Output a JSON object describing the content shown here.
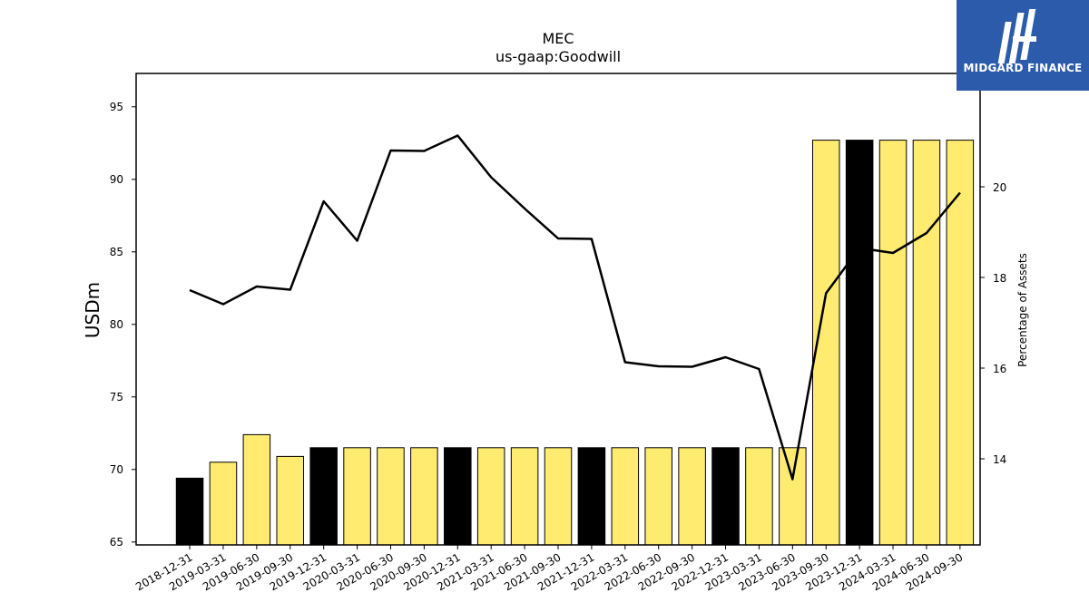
{
  "chart_data": {
    "type": "bar",
    "title": "MEC",
    "subtitle": "us-gaap:Goodwill",
    "ylabel": "USDm",
    "y2label": "Percentage of Assets",
    "ylim": [
      64.8,
      97.3
    ],
    "y2lim": [
      12.1,
      22.5
    ],
    "yticks": [
      65,
      70,
      75,
      80,
      85,
      90,
      95
    ],
    "y2ticks": [
      14,
      16,
      18,
      20
    ],
    "categories": [
      "2018-12-31",
      "2019-03-31",
      "2019-06-30",
      "2019-09-30",
      "2019-12-31",
      "2020-03-31",
      "2020-06-30",
      "2020-09-30",
      "2020-12-31",
      "2021-03-31",
      "2021-06-30",
      "2021-09-30",
      "2021-12-31",
      "2022-03-31",
      "2022-06-30",
      "2022-09-30",
      "2022-12-31",
      "2023-03-31",
      "2023-06-30",
      "2023-09-30",
      "2023-12-31",
      "2024-03-31",
      "2024-06-30",
      "2024-09-30"
    ],
    "bar_values": [
      69.4,
      70.5,
      72.4,
      70.9,
      71.5,
      71.5,
      71.5,
      71.5,
      71.5,
      71.5,
      71.5,
      71.5,
      71.5,
      71.5,
      71.5,
      71.5,
      71.5,
      71.5,
      71.5,
      92.7,
      92.7,
      92.7,
      92.7,
      92.7
    ],
    "bar_colors": [
      "#000000",
      "#ffeb70",
      "#ffeb70",
      "#ffeb70",
      "#000000",
      "#ffeb70",
      "#ffeb70",
      "#ffeb70",
      "#000000",
      "#ffeb70",
      "#ffeb70",
      "#ffeb70",
      "#000000",
      "#ffeb70",
      "#ffeb70",
      "#ffeb70",
      "#000000",
      "#ffeb70",
      "#ffeb70",
      "#ffeb70",
      "#000000",
      "#ffeb70",
      "#ffeb70",
      "#ffeb70"
    ],
    "line_values": [
      17.72,
      17.41,
      17.8,
      17.73,
      19.68,
      18.81,
      20.8,
      20.79,
      21.13,
      20.21,
      19.52,
      18.86,
      18.85,
      16.13,
      16.04,
      16.03,
      16.24,
      15.98,
      13.55,
      17.65,
      18.65,
      18.54,
      18.98,
      19.87
    ],
    "grid": false,
    "legend": "none"
  },
  "logo": {
    "text": "MIDGARD FINANCE",
    "bg": "#2c5bab"
  }
}
